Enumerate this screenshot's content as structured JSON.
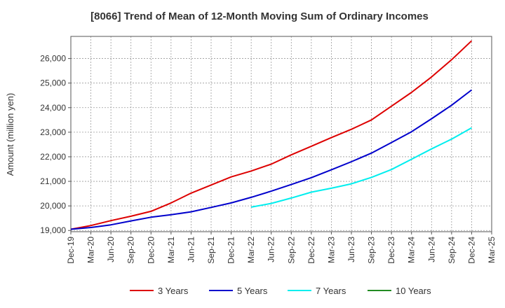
{
  "chart_data": {
    "type": "line",
    "title": "[8066]  Trend of Mean of 12-Month Moving Sum of Ordinary Incomes",
    "xlabel": "",
    "ylabel": "Amount (million yen)",
    "ylim": [
      18950,
      26900
    ],
    "yticks": [
      19000,
      20000,
      21000,
      22000,
      23000,
      24000,
      25000,
      26000
    ],
    "ytick_labels": [
      "19,000",
      "20,000",
      "21,000",
      "22,000",
      "23,000",
      "24,000",
      "25,000",
      "26,000"
    ],
    "categories": [
      "Dec-19",
      "Mar-20",
      "Jun-20",
      "Sep-20",
      "Dec-20",
      "Mar-21",
      "Jun-21",
      "Sep-21",
      "Dec-21",
      "Mar-22",
      "Jun-22",
      "Sep-22",
      "Dec-22",
      "Mar-23",
      "Jun-23",
      "Sep-23",
      "Dec-23",
      "Mar-24",
      "Jun-24",
      "Sep-24",
      "Dec-24",
      "Mar-25"
    ],
    "grid": true,
    "legend_position": "bottom",
    "series": [
      {
        "name": "3 Years",
        "color": "#dd0000",
        "values": [
          19050,
          19200,
          19400,
          19580,
          19780,
          20120,
          20520,
          20850,
          21180,
          21420,
          21700,
          22080,
          22430,
          22780,
          23120,
          23500,
          24060,
          24620,
          25250,
          25950,
          26720,
          null
        ]
      },
      {
        "name": "5 Years",
        "color": "#0000cc",
        "values": [
          19050,
          19120,
          19230,
          19390,
          19540,
          19640,
          19760,
          19940,
          20120,
          20350,
          20600,
          20870,
          21150,
          21470,
          21800,
          22150,
          22580,
          23020,
          23550,
          24100,
          24720,
          null
        ]
      },
      {
        "name": "7 Years",
        "color": "#00eeee",
        "values": [
          null,
          null,
          null,
          null,
          null,
          null,
          null,
          null,
          null,
          19950,
          20100,
          20320,
          20560,
          20720,
          20900,
          21160,
          21480,
          21900,
          22320,
          22720,
          23180,
          null
        ]
      },
      {
        "name": "10 Years",
        "color": "#228b22",
        "values": [
          null,
          null,
          null,
          null,
          null,
          null,
          null,
          null,
          null,
          null,
          null,
          null,
          null,
          null,
          null,
          null,
          null,
          null,
          null,
          null,
          null,
          null
        ]
      }
    ]
  }
}
